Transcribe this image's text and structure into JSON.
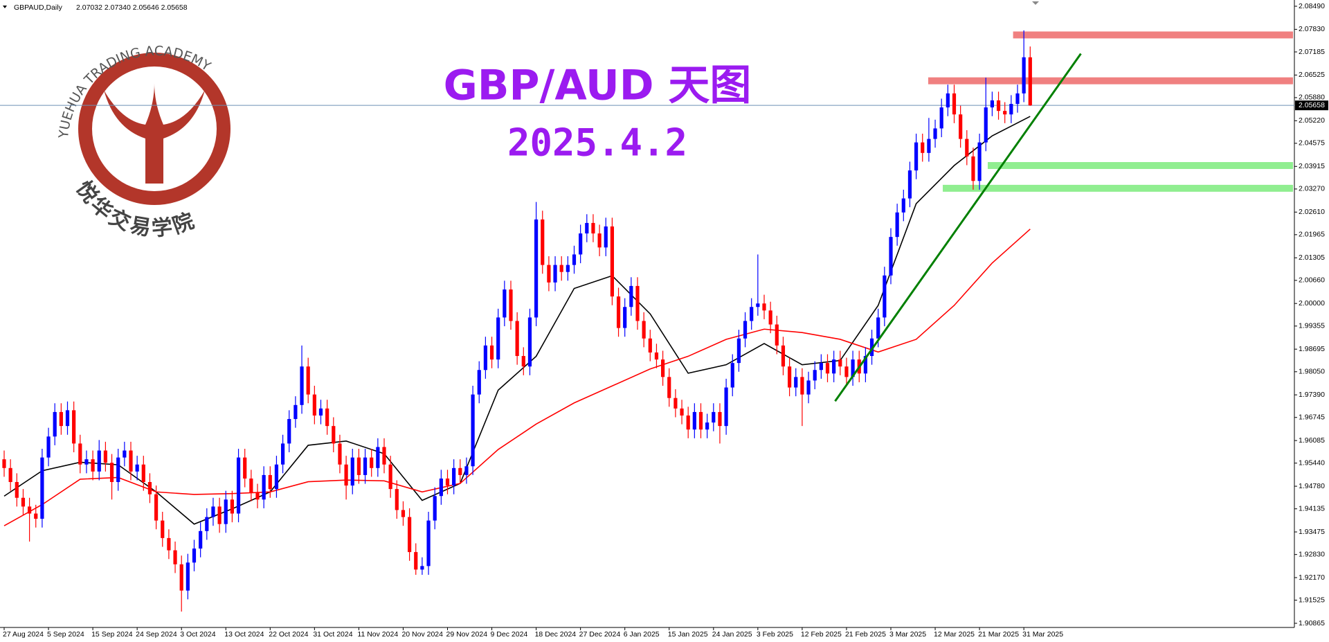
{
  "chart_data": {
    "type": "candlestick",
    "symbol": "GBPAUD,Daily",
    "quote": "2.07032 2.07340 2.05646 2.05658",
    "title": "GBP/AUD 天图",
    "subtitle": "2025.4.2",
    "logo_text": "YUEHUA TRADING ACADEMY",
    "logo_name": "悦华交易学院",
    "up_color": "#0000ff",
    "down_color": "#ff0000",
    "ylim": [
      1.90865,
      2.0849
    ],
    "yticks": [
      {
        "value": 2.0849,
        "label": "2.08490"
      },
      {
        "value": 2.0783,
        "label": "2.07830"
      },
      {
        "value": 2.07185,
        "label": "2.07185"
      },
      {
        "value": 2.06525,
        "label": "2.06525"
      },
      {
        "value": 2.0588,
        "label": "2.05880"
      },
      {
        "value": 2.0522,
        "label": "2.05220"
      },
      {
        "value": 2.04575,
        "label": "2.04575"
      },
      {
        "value": 2.03915,
        "label": "2.03915"
      },
      {
        "value": 2.0327,
        "label": "2.03270"
      },
      {
        "value": 2.0261,
        "label": "2.02610"
      },
      {
        "value": 2.01965,
        "label": "2.01965"
      },
      {
        "value": 2.01305,
        "label": "2.01305"
      },
      {
        "value": 2.0066,
        "label": "2.00660"
      },
      {
        "value": 2.0,
        "label": "2.00000"
      },
      {
        "value": 1.99355,
        "label": "1.99355"
      },
      {
        "value": 1.98695,
        "label": "1.98695"
      },
      {
        "value": 1.9805,
        "label": "1.98050"
      },
      {
        "value": 1.9739,
        "label": "1.97390"
      },
      {
        "value": 1.96745,
        "label": "1.96745"
      },
      {
        "value": 1.96085,
        "label": "1.96085"
      },
      {
        "value": 1.9544,
        "label": "1.95440"
      },
      {
        "value": 1.9478,
        "label": "1.94780"
      },
      {
        "value": 1.94135,
        "label": "1.94135"
      },
      {
        "value": 1.93475,
        "label": "1.93475"
      },
      {
        "value": 1.9283,
        "label": "1.92830"
      },
      {
        "value": 1.9217,
        "label": "1.92170"
      },
      {
        "value": 1.91525,
        "label": "1.91525"
      },
      {
        "value": 1.90865,
        "label": "1.90865"
      }
    ],
    "price_line": {
      "value": 2.05658,
      "label": "2.05658",
      "color": "#6b8fb5"
    },
    "categories": [
      "27 Aug 2024",
      null,
      null,
      null,
      null,
      null,
      null,
      "5 Sep 2024",
      null,
      null,
      null,
      null,
      null,
      null,
      "15 Sep 2024",
      null,
      null,
      null,
      null,
      null,
      null,
      "24 Sep 2024",
      null,
      null,
      null,
      null,
      null,
      null,
      "3 Oct 2024",
      null,
      null,
      null,
      null,
      null,
      null,
      "13 Oct 2024",
      null,
      null,
      null,
      null,
      null,
      null,
      "22 Oct 2024",
      null,
      null,
      null,
      null,
      null,
      null,
      "31 Oct 2024",
      null,
      null,
      null,
      null,
      null,
      null,
      "11 Nov 2024",
      null,
      null,
      null,
      null,
      null,
      null,
      "20 Nov 2024",
      null,
      null,
      null,
      null,
      null,
      null,
      "29 Nov 2024",
      null,
      null,
      null,
      null,
      null,
      null,
      "9 Dec 2024",
      null,
      null,
      null,
      null,
      null,
      null,
      "18 Dec 2024",
      null,
      null,
      null,
      null,
      null,
      null,
      "27 Dec 2024",
      null,
      null,
      null,
      null,
      null,
      null,
      "6 Jan 2025",
      null,
      null,
      null,
      null,
      null,
      null,
      "15 Jan 2025",
      null,
      null,
      null,
      null,
      null,
      null,
      "24 Jan 2025",
      null,
      null,
      null,
      null,
      null,
      null,
      "3 Feb 2025",
      null,
      null,
      null,
      null,
      null,
      null,
      "12 Feb 2025",
      null,
      null,
      null,
      null,
      null,
      null,
      "21 Feb 2025",
      null,
      null,
      null,
      null,
      null,
      null,
      "3 Mar 2025",
      null,
      null,
      null,
      null,
      null,
      null,
      "12 Mar 2025",
      null,
      null,
      null,
      null,
      null,
      null,
      "21 Mar 2025",
      null,
      null,
      null,
      null,
      null,
      null,
      "31 Mar 2025",
      null
    ],
    "ohlc": [
      [
        1.9555,
        1.958,
        1.9505,
        1.953
      ],
      [
        1.953,
        1.9555,
        1.9465,
        1.949
      ],
      [
        1.949,
        1.9515,
        1.942,
        1.9445
      ],
      [
        1.9445,
        1.947,
        1.9395,
        1.942
      ],
      [
        1.942,
        1.9445,
        1.932,
        1.94
      ],
      [
        1.94,
        1.9425,
        1.936,
        1.9385
      ],
      [
        1.9385,
        1.9585,
        1.936,
        1.956
      ],
      [
        1.956,
        1.9645,
        1.9535,
        1.962
      ],
      [
        1.962,
        1.9715,
        1.9595,
        1.969
      ],
      [
        1.969,
        1.9715,
        1.9625,
        1.965
      ],
      [
        1.965,
        1.972,
        1.9625,
        1.9695
      ],
      [
        1.9695,
        1.972,
        1.9575,
        1.96
      ],
      [
        1.96,
        1.9625,
        1.9515,
        1.954
      ],
      [
        1.954,
        1.958,
        1.9515,
        1.9555
      ],
      [
        1.9555,
        1.958,
        1.9495,
        1.952
      ],
      [
        1.952,
        1.961,
        1.9495,
        1.958
      ],
      [
        1.958,
        1.9605,
        1.952,
        1.9545
      ],
      [
        1.9545,
        1.957,
        1.944,
        1.949
      ],
      [
        1.949,
        1.9585,
        1.9465,
        1.956
      ],
      [
        1.956,
        1.9605,
        1.9535,
        1.958
      ],
      [
        1.958,
        1.9605,
        1.9495,
        1.952
      ],
      [
        1.952,
        1.9565,
        1.9495,
        1.954
      ],
      [
        1.954,
        1.9565,
        1.9465,
        1.949
      ],
      [
        1.949,
        1.9515,
        1.943,
        1.9455
      ],
      [
        1.9455,
        1.948,
        1.9355,
        1.938
      ],
      [
        1.938,
        1.9405,
        1.9305,
        1.933
      ],
      [
        1.933,
        1.9355,
        1.927,
        1.9295
      ],
      [
        1.9295,
        1.932,
        1.923,
        1.9255
      ],
      [
        1.9255,
        1.928,
        1.912,
        1.918
      ],
      [
        1.918,
        1.9285,
        1.9155,
        1.926
      ],
      [
        1.926,
        1.9325,
        1.9235,
        1.93
      ],
      [
        1.93,
        1.9375,
        1.9275,
        1.935
      ],
      [
        1.935,
        1.9415,
        1.9325,
        1.939
      ],
      [
        1.939,
        1.9445,
        1.9365,
        1.942
      ],
      [
        1.942,
        1.9445,
        1.9345,
        1.937
      ],
      [
        1.937,
        1.9465,
        1.9345,
        1.944
      ],
      [
        1.944,
        1.9465,
        1.9375,
        1.94
      ],
      [
        1.94,
        1.9585,
        1.9375,
        1.956
      ],
      [
        1.956,
        1.9585,
        1.9475,
        1.95
      ],
      [
        1.95,
        1.9525,
        1.9435,
        1.946
      ],
      [
        1.946,
        1.9485,
        1.9415,
        1.944
      ],
      [
        1.944,
        1.9535,
        1.9415,
        1.951
      ],
      [
        1.951,
        1.9535,
        1.9445,
        1.947
      ],
      [
        1.947,
        1.9565,
        1.9445,
        1.954
      ],
      [
        1.954,
        1.9625,
        1.9515,
        1.96
      ],
      [
        1.96,
        1.9695,
        1.9575,
        1.967
      ],
      [
        1.967,
        1.9735,
        1.9645,
        1.971
      ],
      [
        1.971,
        1.988,
        1.9685,
        1.982
      ],
      [
        1.982,
        1.9845,
        1.9715,
        1.974
      ],
      [
        1.974,
        1.9765,
        1.9655,
        1.968
      ],
      [
        1.968,
        1.9725,
        1.9655,
        1.97
      ],
      [
        1.97,
        1.9725,
        1.9625,
        1.965
      ],
      [
        1.965,
        1.9675,
        1.9575,
        1.96
      ],
      [
        1.96,
        1.9625,
        1.9515,
        1.954
      ],
      [
        1.954,
        1.9565,
        1.944,
        1.948
      ],
      [
        1.948,
        1.9585,
        1.9455,
        1.956
      ],
      [
        1.956,
        1.9585,
        1.9485,
        1.951
      ],
      [
        1.951,
        1.9585,
        1.9485,
        1.956
      ],
      [
        1.956,
        1.9585,
        1.9505,
        1.953
      ],
      [
        1.953,
        1.9615,
        1.9505,
        1.959
      ],
      [
        1.959,
        1.9615,
        1.9515,
        1.954
      ],
      [
        1.954,
        1.9565,
        1.9445,
        1.947
      ],
      [
        1.947,
        1.9495,
        1.9385,
        1.941
      ],
      [
        1.941,
        1.9435,
        1.9365,
        1.939
      ],
      [
        1.939,
        1.9415,
        1.9265,
        1.929
      ],
      [
        1.929,
        1.9315,
        1.9225,
        1.924
      ],
      [
        1.924,
        1.9275,
        1.9225,
        1.925
      ],
      [
        1.925,
        1.9405,
        1.9225,
        1.938
      ],
      [
        1.938,
        1.9475,
        1.9355,
        1.945
      ],
      [
        1.945,
        1.9525,
        1.9425,
        1.95
      ],
      [
        1.95,
        1.9525,
        1.9455,
        1.948
      ],
      [
        1.948,
        1.9555,
        1.9455,
        1.953
      ],
      [
        1.953,
        1.9555,
        1.9485,
        1.951
      ],
      [
        1.951,
        1.956,
        1.9485,
        1.9535
      ],
      [
        1.9535,
        1.9765,
        1.951,
        1.974
      ],
      [
        1.974,
        1.9835,
        1.9715,
        1.981
      ],
      [
        1.981,
        1.9905,
        1.9785,
        1.988
      ],
      [
        1.988,
        1.9905,
        1.9815,
        1.984
      ],
      [
        1.984,
        1.9985,
        1.9815,
        1.996
      ],
      [
        1.996,
        2.0065,
        1.9935,
        2.004
      ],
      [
        2.004,
        2.0065,
        1.9925,
        1.995
      ],
      [
        1.995,
        1.9975,
        1.9825,
        1.985
      ],
      [
        1.985,
        1.9875,
        1.9795,
        1.982
      ],
      [
        1.982,
        1.9985,
        1.9795,
        1.996
      ],
      [
        1.996,
        2.029,
        1.9935,
        2.024
      ],
      [
        2.024,
        2.0265,
        2.0085,
        2.011
      ],
      [
        2.011,
        2.0135,
        2.0035,
        2.006
      ],
      [
        2.006,
        2.0135,
        2.0035,
        2.011
      ],
      [
        2.011,
        2.0135,
        2.0065,
        2.009
      ],
      [
        2.009,
        2.0135,
        2.0065,
        2.011
      ],
      [
        2.011,
        2.0165,
        2.0085,
        2.014
      ],
      [
        2.014,
        2.0225,
        2.0115,
        2.02
      ],
      [
        2.02,
        2.0255,
        2.0175,
        2.023
      ],
      [
        2.023,
        2.0255,
        2.0175,
        2.02
      ],
      [
        2.02,
        2.0225,
        2.0135,
        2.016
      ],
      [
        2.016,
        2.0245,
        2.0135,
        2.022
      ],
      [
        2.022,
        2.0245,
        1.9995,
        2.002
      ],
      [
        2.002,
        2.0045,
        1.9905,
        1.993
      ],
      [
        1.993,
        2.0015,
        1.9905,
        1.999
      ],
      [
        1.999,
        2.0075,
        1.9965,
        2.005
      ],
      [
        2.005,
        2.0075,
        1.9925,
        1.995
      ],
      [
        1.995,
        1.9975,
        1.9875,
        1.99
      ],
      [
        1.99,
        1.9925,
        1.9835,
        1.986
      ],
      [
        1.986,
        1.9885,
        1.9815,
        1.984
      ],
      [
        1.984,
        1.9865,
        1.9765,
        1.979
      ],
      [
        1.979,
        1.9815,
        1.9705,
        1.973
      ],
      [
        1.973,
        1.9755,
        1.9675,
        1.97
      ],
      [
        1.97,
        1.9725,
        1.9655,
        1.968
      ],
      [
        1.968,
        1.9705,
        1.9615,
        1.964
      ],
      [
        1.964,
        1.9715,
        1.9615,
        1.969
      ],
      [
        1.969,
        1.9715,
        1.9615,
        1.964
      ],
      [
        1.964,
        1.9685,
        1.9615,
        1.966
      ],
      [
        1.966,
        1.9715,
        1.9635,
        1.969
      ],
      [
        1.969,
        1.9715,
        1.96,
        1.965
      ],
      [
        1.965,
        1.9785,
        1.9625,
        1.976
      ],
      [
        1.976,
        1.9855,
        1.9735,
        1.983
      ],
      [
        1.983,
        1.9925,
        1.9805,
        1.99
      ],
      [
        1.99,
        1.9975,
        1.9875,
        1.995
      ],
      [
        1.995,
        2.0015,
        1.9925,
        1.999
      ],
      [
        1.999,
        2.014,
        1.9965,
        2.0
      ],
      [
        2.0,
        2.0025,
        1.9955,
        1.998
      ],
      [
        1.998,
        2.0005,
        1.9915,
        1.994
      ],
      [
        1.994,
        1.9965,
        1.9855,
        1.988
      ],
      [
        1.988,
        1.9905,
        1.9795,
        1.982
      ],
      [
        1.982,
        1.9845,
        1.9735,
        1.976
      ],
      [
        1.976,
        1.9815,
        1.9735,
        1.979
      ],
      [
        1.979,
        1.9815,
        1.965,
        1.974
      ],
      [
        1.974,
        1.9805,
        1.9715,
        1.978
      ],
      [
        1.978,
        1.9835,
        1.9755,
        1.981
      ],
      [
        1.981,
        1.9855,
        1.9785,
        1.983
      ],
      [
        1.983,
        1.9855,
        1.9775,
        1.98
      ],
      [
        1.98,
        1.9865,
        1.9775,
        1.984
      ],
      [
        1.984,
        1.9865,
        1.9795,
        1.982
      ],
      [
        1.982,
        1.9845,
        1.9765,
        1.979
      ],
      [
        1.979,
        1.9865,
        1.9765,
        1.984
      ],
      [
        1.984,
        1.9865,
        1.9775,
        1.98
      ],
      [
        1.98,
        1.9875,
        1.9775,
        1.985
      ],
      [
        1.985,
        1.9925,
        1.9825,
        1.99
      ],
      [
        1.99,
        1.9985,
        1.9875,
        1.996
      ],
      [
        1.996,
        2.0105,
        1.9935,
        2.008
      ],
      [
        2.008,
        2.0215,
        2.0055,
        2.019
      ],
      [
        2.019,
        2.0285,
        2.0165,
        2.026
      ],
      [
        2.026,
        2.0325,
        2.0235,
        2.03
      ],
      [
        2.03,
        2.0405,
        2.0275,
        2.038
      ],
      [
        2.038,
        2.0485,
        2.0355,
        2.046
      ],
      [
        2.046,
        2.0485,
        2.0405,
        2.043
      ],
      [
        2.043,
        2.053,
        2.0405,
        2.047
      ],
      [
        2.047,
        2.0525,
        2.0445,
        2.05
      ],
      [
        2.05,
        2.0585,
        2.0475,
        2.056
      ],
      [
        2.056,
        2.0625,
        2.0535,
        2.06
      ],
      [
        2.06,
        2.0625,
        2.0515,
        2.054
      ],
      [
        2.054,
        2.0565,
        2.0445,
        2.047
      ],
      [
        2.047,
        2.0495,
        2.0395,
        2.042
      ],
      [
        2.042,
        2.0445,
        2.0325,
        2.035
      ],
      [
        2.035,
        2.0485,
        2.0325,
        2.046
      ],
      [
        2.046,
        2.0645,
        2.0435,
        2.056
      ],
      [
        2.056,
        2.0605,
        2.0535,
        2.058
      ],
      [
        2.058,
        2.0605,
        2.0525,
        2.055
      ],
      [
        2.055,
        2.0575,
        2.0515,
        2.054
      ],
      [
        2.054,
        2.0595,
        2.0515,
        2.057
      ],
      [
        2.057,
        2.0625,
        2.0545,
        2.06
      ],
      [
        2.06,
        2.078,
        2.0575,
        2.07032
      ],
      [
        2.07032,
        2.0734,
        2.05646,
        2.05658
      ]
    ],
    "moving_averages": [
      {
        "color": "#000000",
        "x": [
          0,
          6,
          12,
          18,
          24,
          30,
          36,
          42,
          48,
          54,
          60,
          66,
          72,
          78,
          84,
          90,
          96,
          102,
          108,
          114,
          120,
          126,
          132,
          138,
          144,
          150,
          156,
          162
        ],
        "values": [
          1.94497,
          1.95223,
          1.95465,
          1.95393,
          1.94618,
          1.93698,
          1.94134,
          1.94618,
          1.9595,
          1.96071,
          1.95708,
          1.94376,
          1.9486,
          1.97524,
          1.98492,
          2.00429,
          2.00792,
          1.99703,
          1.98008,
          1.9825,
          1.98855,
          1.9825,
          1.98371,
          1.99945,
          2.0285,
          2.0394,
          2.04788,
          2.05344
        ]
      },
      {
        "color": "#ff0000",
        "x": [
          0,
          6,
          12,
          18,
          24,
          30,
          36,
          42,
          48,
          54,
          60,
          66,
          72,
          78,
          84,
          90,
          96,
          102,
          108,
          114,
          120,
          126,
          132,
          138,
          144,
          150,
          156,
          162
        ],
        "values": [
          1.9365,
          1.94255,
          1.94981,
          1.9503,
          1.94618,
          1.94545,
          1.9457,
          1.94618,
          1.94909,
          1.94957,
          1.94933,
          1.94618,
          1.9486,
          1.95829,
          1.96555,
          1.9716,
          1.97645,
          1.98129,
          1.98492,
          1.98976,
          1.99267,
          1.9917,
          1.98976,
          1.98613,
          1.98976,
          1.99945,
          2.01156,
          2.02124
        ]
      }
    ],
    "zones": [
      {
        "color": "#f08080",
        "value": 2.0767,
        "start": 159.3
      },
      {
        "color": "#f08080",
        "value": 2.0636,
        "start": 145.9
      },
      {
        "color": "#90ee90",
        "value": 2.0394,
        "start": 155.3
      },
      {
        "color": "#90ee90",
        "value": 2.0329,
        "start": 148.2
      }
    ],
    "trendline": {
      "color": "#008000",
      "x": [
        131.2,
        170
      ],
      "values": [
        1.97209,
        2.07136
      ]
    }
  }
}
